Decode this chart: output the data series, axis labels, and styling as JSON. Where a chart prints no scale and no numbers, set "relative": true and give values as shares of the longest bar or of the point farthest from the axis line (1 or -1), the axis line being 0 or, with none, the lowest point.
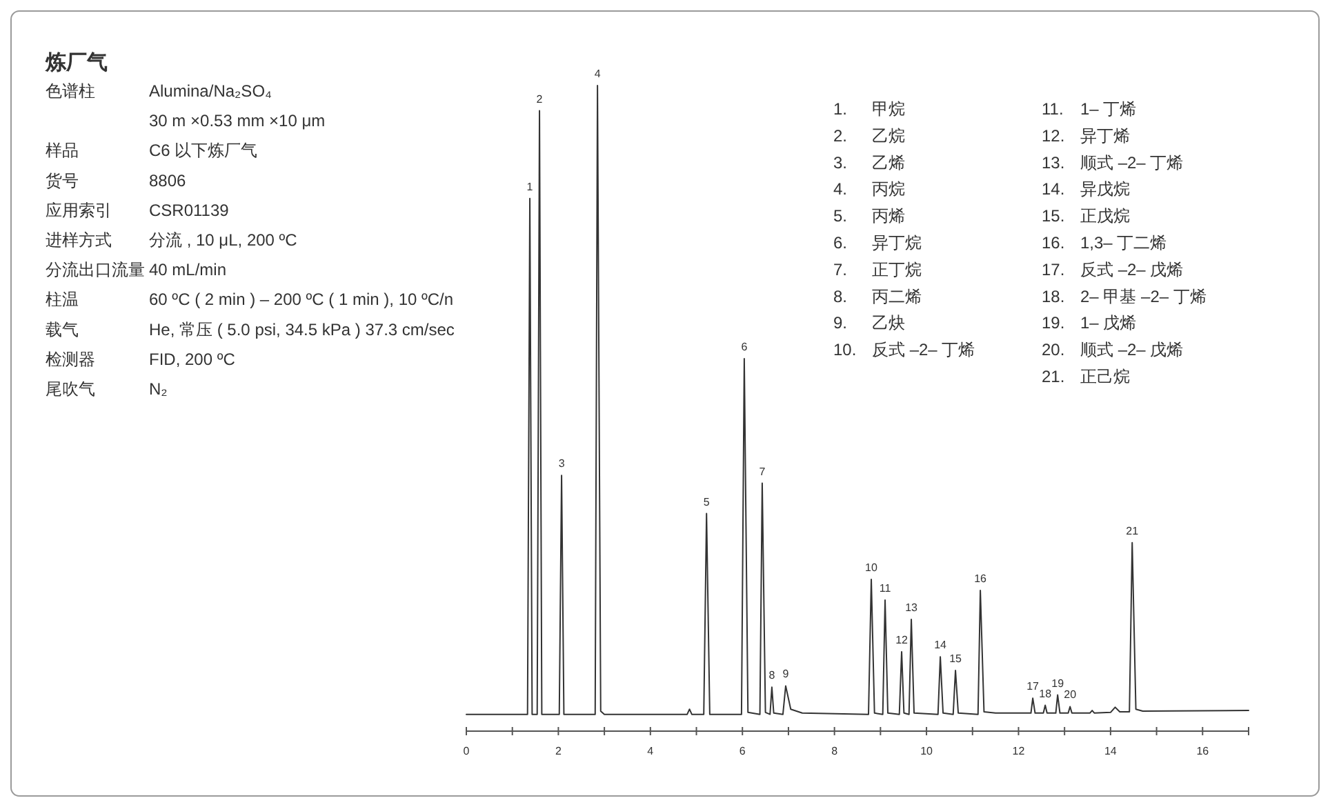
{
  "chart_data": {
    "type": "line",
    "relative": true,
    "title": "炼厂气",
    "x": [
      0,
      1.33,
      1.38,
      1.43,
      1.54,
      1.59,
      1.64,
      2.02,
      2.07,
      2.12,
      2.8,
      2.85,
      2.92,
      3.0,
      4.8,
      4.85,
      4.9,
      5.16,
      5.22,
      5.29,
      5.98,
      6.04,
      6.12,
      6.38,
      6.43,
      6.5,
      6.6,
      6.64,
      6.68,
      6.88,
      6.94,
      7.05,
      7.3,
      8.74,
      8.8,
      8.87,
      9.05,
      9.1,
      9.16,
      9.41,
      9.46,
      9.51,
      9.62,
      9.67,
      9.73,
      10.25,
      10.3,
      10.36,
      10.58,
      10.63,
      10.69,
      11.12,
      11.17,
      11.25,
      11.5,
      12.27,
      12.31,
      12.36,
      12.54,
      12.58,
      12.62,
      12.81,
      12.85,
      12.9,
      13.08,
      13.12,
      13.16,
      13.55,
      13.6,
      13.65,
      14.0,
      14.1,
      14.2,
      14.41,
      14.47,
      14.55,
      14.7,
      17
    ],
    "series": [
      {
        "color": "#333333",
        "values": [
          0.026,
          0.026,
          0.825,
          0.026,
          0.026,
          0.961,
          0.026,
          0.026,
          0.396,
          0.026,
          0.026,
          1,
          0.031,
          0.026,
          0.026,
          0.034,
          0.026,
          0.026,
          0.337,
          0.026,
          0.026,
          0.577,
          0.029,
          0.026,
          0.384,
          0.029,
          0.026,
          0.068,
          0.028,
          0.026,
          0.07,
          0.034,
          0.028,
          0.026,
          0.235,
          0.028,
          0.026,
          0.203,
          0.028,
          0.026,
          0.123,
          0.028,
          0.026,
          0.173,
          0.028,
          0.026,
          0.115,
          0.028,
          0.026,
          0.094,
          0.028,
          0.026,
          0.218,
          0.03,
          0.028,
          0.028,
          0.051,
          0.028,
          0.028,
          0.04,
          0.028,
          0.028,
          0.056,
          0.028,
          0.028,
          0.038,
          0.028,
          0.028,
          0.032,
          0.028,
          0.029,
          0.037,
          0.03,
          0.03,
          0.292,
          0.034,
          0.031,
          0.032
        ]
      }
    ],
    "xlim": [
      0,
      17
    ],
    "xticks": [
      0,
      {
        "value": 1,
        "label": null
      },
      2,
      {
        "value": 3,
        "label": null
      },
      4,
      {
        "value": 5,
        "label": null
      },
      6,
      {
        "value": 7,
        "label": null
      },
      8,
      {
        "value": 9,
        "label": null
      },
      10,
      {
        "value": 11,
        "label": null
      },
      12,
      {
        "value": 13,
        "label": null
      },
      14,
      {
        "value": 15,
        "label": null
      },
      16,
      {
        "value": 17,
        "label": null
      }
    ],
    "tick_labels": "x",
    "annotations": [
      {
        "text": "1",
        "x": 1.38,
        "y": 0.825
      },
      {
        "text": "2",
        "x": 1.59,
        "y": 0.961
      },
      {
        "text": "3",
        "x": 2.07,
        "y": 0.396
      },
      {
        "text": "4",
        "x": 2.85,
        "y": 1
      },
      {
        "text": "5",
        "x": 5.22,
        "y": 0.337
      },
      {
        "text": "6",
        "x": 6.04,
        "y": 0.577
      },
      {
        "text": "7",
        "x": 6.43,
        "y": 0.384
      },
      {
        "text": "8",
        "x": 6.64,
        "y": 0.068
      },
      {
        "text": "9",
        "x": 6.94,
        "y": 0.07
      },
      {
        "text": "10",
        "x": 8.8,
        "y": 0.235
      },
      {
        "text": "11",
        "x": 9.1,
        "y": 0.203
      },
      {
        "text": "12",
        "x": 9.46,
        "y": 0.123
      },
      {
        "text": "13",
        "x": 9.67,
        "y": 0.173
      },
      {
        "text": "14",
        "x": 10.3,
        "y": 0.115
      },
      {
        "text": "15",
        "x": 10.63,
        "y": 0.094
      },
      {
        "text": "16",
        "x": 11.17,
        "y": 0.218
      },
      {
        "text": "17",
        "x": 12.31,
        "y": 0.051
      },
      {
        "text": "18",
        "x": 12.58,
        "y": 0.04
      },
      {
        "text": "19",
        "x": 12.85,
        "y": 0.056
      },
      {
        "text": "20",
        "x": 13.12,
        "y": 0.038
      },
      {
        "text": "21",
        "x": 14.47,
        "y": 0.292
      },
      "色谱柱",
      "Alumina/Na₂SO₄",
      "30 m ×0.53 mm ×10 μm",
      "样品",
      "C6 以下炼厂气",
      "货号",
      "8806",
      "应用索引",
      "CSR01139",
      "进样方式",
      "分流 , 10 μL, 200 ºC",
      "分流出口流量",
      "40 mL/min",
      "柱温",
      "60 ºC ( 2 min ) – 200 ºC ( 1 min ), 10 ºC/n",
      "载气",
      "He, 常压 ( 5.0 psi, 34.5 kPa ) 37.3 cm/sec",
      "检测器",
      "FID, 200 ºC",
      "尾吹气",
      "N₂",
      "1.",
      "甲烷",
      "2.",
      "乙烷",
      "3.",
      "乙烯",
      "4.",
      "丙烷",
      "5.",
      "丙烯",
      "6.",
      "异丁烷",
      "7.",
      "正丁烷",
      "8.",
      "丙二烯",
      "9.",
      "乙炔",
      "10.",
      "反式 –2– 丁烯",
      "11.",
      "1– 丁烯",
      "12.",
      "异丁烯",
      "13.",
      "顺式 –2– 丁烯",
      "14.",
      "异戊烷",
      "15.",
      "正戊烷",
      "16.",
      "1,3– 丁二烯",
      "17.",
      "反式 –2– 戊烯",
      "18.",
      "2– 甲基 –2– 丁烯",
      "19.",
      "1– 戊烯",
      "20.",
      "顺式 –2– 戊烯",
      "21.",
      "正己烷"
    ]
  }
}
